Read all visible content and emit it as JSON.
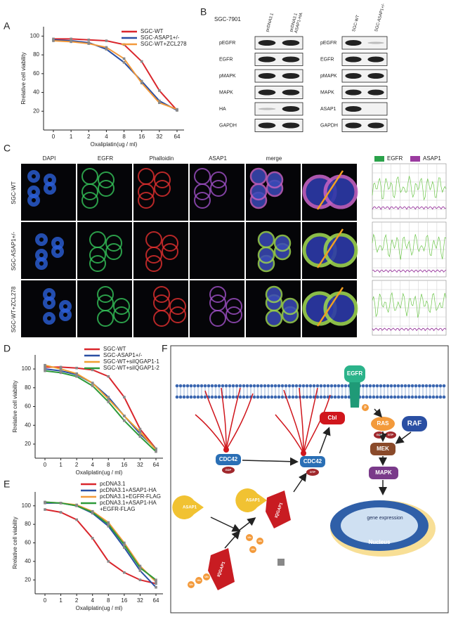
{
  "chart_data": [
    {
      "type": "line",
      "label": "A",
      "xlabel": "Oxaliplatin(ug / ml)",
      "ylabel": "Rrelative cell viability",
      "categories": [
        "0",
        "1",
        "2",
        "4",
        "8",
        "16",
        "32",
        "64"
      ],
      "ylim": [
        0,
        110
      ],
      "yticks": [
        20,
        40,
        60,
        80,
        100
      ],
      "series": [
        {
          "name": "SGC-WT",
          "color": "#d9262c",
          "values": [
            97,
            97,
            96,
            95,
            91,
            73,
            42,
            21
          ]
        },
        {
          "name": "SGC-ASAP1+/-",
          "color": "#2a4fa3",
          "values": [
            96,
            95,
            93,
            86,
            72,
            52,
            31,
            21
          ]
        },
        {
          "name": "SGC-WT+ZCL278",
          "color": "#f39a3b",
          "values": [
            95,
            94,
            92,
            88,
            76,
            50,
            29,
            22
          ]
        }
      ]
    },
    {
      "type": "line",
      "label": "D",
      "xlabel": "Oxaliplatin(ug / ml)",
      "ylabel": "Rrelative cell viability",
      "categories": [
        "0",
        "1",
        "2",
        "4",
        "8",
        "16",
        "32",
        "64"
      ],
      "ylim": [
        5,
        115
      ],
      "yticks": [
        20,
        40,
        60,
        80,
        100
      ],
      "series": [
        {
          "name": "SGC-WT",
          "color": "#d9262c",
          "values": [
            102,
            102,
            101,
            99,
            92,
            70,
            36,
            15
          ]
        },
        {
          "name": "SGC-ASAP1+/-",
          "color": "#2a4fa3",
          "values": [
            100,
            98,
            94,
            85,
            70,
            50,
            31,
            15
          ]
        },
        {
          "name": "SGC-WT+siIQGAP1-1",
          "color": "#f0a030",
          "values": [
            104,
            100,
            95,
            85,
            68,
            50,
            33,
            14
          ]
        },
        {
          "name": "SGC-WT+siIQGAP1-2",
          "color": "#2e9a3a",
          "values": [
            98,
            96,
            92,
            82,
            65,
            45,
            28,
            12
          ]
        }
      ]
    },
    {
      "type": "line",
      "label": "E",
      "xlabel": "Oxaliplatin(ug / ml)",
      "ylabel": "Rrelative cell viability",
      "categories": [
        "0",
        "1",
        "2",
        "4",
        "8",
        "16",
        "32",
        "64"
      ],
      "ylim": [
        5,
        115
      ],
      "yticks": [
        20,
        40,
        60,
        80,
        100
      ],
      "series": [
        {
          "name": "pcDNA3.1",
          "color": "#d9262c",
          "values": [
            96,
            93,
            85,
            65,
            40,
            28,
            20,
            16
          ]
        },
        {
          "name": "pcDNA3.1+ASAP1-HA",
          "color": "#2a4fa3",
          "values": [
            103,
            103,
            100,
            92,
            78,
            55,
            30,
            12
          ]
        },
        {
          "name": "pcDNA3.1+EGFR-FLAG",
          "color": "#f39a3b",
          "values": [
            104,
            103,
            101,
            94,
            82,
            60,
            35,
            18
          ]
        },
        {
          "name": "pcDNA3.1+ASAP1-HA\n+EGFR-FLAG",
          "color": "#2e9a3a",
          "values": [
            104,
            103,
            100,
            93,
            80,
            58,
            33,
            20
          ]
        }
      ]
    }
  ],
  "blots": {
    "label": "B",
    "left": {
      "header": "SGC-7901",
      "lanes": [
        "pcDNA3.1",
        "pcDNA3.1\nASAP1-HA"
      ],
      "rows": [
        "pEGFR",
        "EGFR",
        "pMAPK",
        "MAPK",
        "HA",
        "GAPDH"
      ]
    },
    "right": {
      "lanes": [
        "SGC-WT",
        "SGC-ASAP1+/-"
      ],
      "rows": [
        "pEGFR",
        "EGFR",
        "pMAPK",
        "MAPK",
        "ASAP1",
        "GAPDH"
      ]
    }
  },
  "microscopy": {
    "label": "C",
    "columns": [
      "DAPI",
      "EGFR",
      "Phalloidin",
      "ASAP1",
      "merge"
    ],
    "rows": [
      "SGC-WT",
      "SGC-ASAP1+/-",
      "SGC-WT+ZCL278"
    ],
    "legend": [
      "EGFR",
      "ASAP1"
    ]
  },
  "diagram": {
    "label": "F",
    "nodes": [
      "EGFR",
      "P",
      "Cbl",
      "RAS",
      "GDP",
      "GTP",
      "RAF",
      "MEK",
      "MAPK",
      "CDC42",
      "GDP",
      "CDC42",
      "GTP",
      "ASAP1",
      "ASAP1",
      "IQGAP1",
      "IQGAP1",
      "Ub",
      "Ub",
      "Ub",
      "Ub",
      "Ub",
      "Ub",
      "gene expression",
      "Nucleus"
    ]
  }
}
